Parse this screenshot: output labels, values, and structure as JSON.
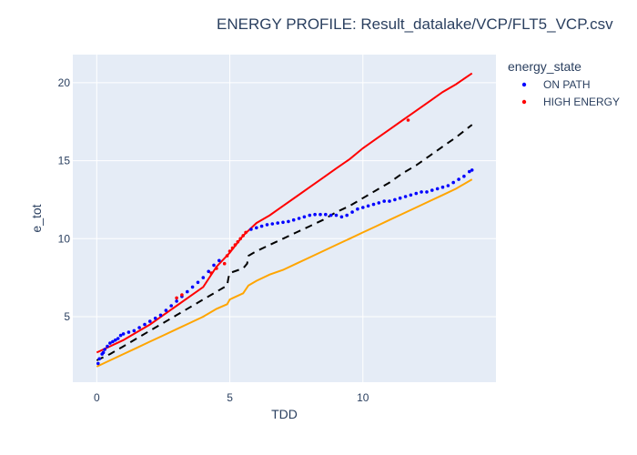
{
  "chart_data": {
    "type": "line",
    "title": "ENERGY PROFILE: Result_datalake/VCP/FLT5_VCP.csv",
    "xlabel": "TDD",
    "ylabel": "e_tot",
    "xlim": [
      -0.9,
      15.0
    ],
    "ylim": [
      0.8,
      21.8
    ],
    "xticks": [
      0,
      5,
      10
    ],
    "yticks": [
      5,
      10,
      15,
      20
    ],
    "grid": true,
    "legend": {
      "title": "energy_state",
      "placement": "top-right-outside",
      "entries": [
        {
          "label": "ON PATH",
          "color": "#0000ff"
        },
        {
          "label": "HIGH ENERGY",
          "color": "#ff0000"
        }
      ]
    },
    "plot_background": "#e5ecf6",
    "series": [
      {
        "kind": "line",
        "color": "#ff0000",
        "dash": "solid",
        "x": [
          0,
          0.5,
          1,
          1.5,
          2,
          2.5,
          3,
          3.5,
          4,
          4.5,
          5,
          5.5,
          6,
          6.5,
          7,
          7.5,
          8,
          8.5,
          9,
          9.5,
          10,
          10.5,
          11,
          11.5,
          12,
          12.5,
          13,
          13.5,
          14.1
        ],
        "y": [
          2.7,
          3.1,
          3.5,
          4.0,
          4.5,
          5.1,
          5.7,
          6.3,
          6.9,
          8.2,
          9.1,
          10.2,
          11.0,
          11.5,
          12.1,
          12.7,
          13.3,
          13.9,
          14.5,
          15.1,
          15.8,
          16.4,
          17.0,
          17.6,
          18.2,
          18.8,
          19.4,
          19.9,
          20.6
        ]
      },
      {
        "kind": "line",
        "color": "#ffa500",
        "dash": "solid",
        "x": [
          0,
          0.5,
          1,
          1.5,
          2,
          2.5,
          3,
          3.5,
          4,
          4.5,
          4.9,
          5.0,
          5.5,
          5.7,
          6.0,
          6.5,
          7,
          7.5,
          8,
          8.5,
          9,
          9.5,
          10,
          10.5,
          11,
          11.5,
          12,
          12.5,
          13,
          13.5,
          14.1
        ],
        "y": [
          1.8,
          2.2,
          2.6,
          3.0,
          3.4,
          3.8,
          4.2,
          4.6,
          5.0,
          5.5,
          5.8,
          6.1,
          6.5,
          7.0,
          7.3,
          7.7,
          8.0,
          8.4,
          8.8,
          9.2,
          9.6,
          10.0,
          10.4,
          10.8,
          11.2,
          11.6,
          12.0,
          12.4,
          12.8,
          13.2,
          13.8
        ]
      },
      {
        "kind": "line",
        "color": "#000000",
        "dash": "dashed",
        "x": [
          0,
          0.5,
          1,
          1.5,
          2,
          2.5,
          3,
          3.5,
          4,
          4.5,
          4.9,
          4.95,
          5.0,
          5.5,
          5.65,
          5.7,
          6.0,
          6.5,
          7,
          7.5,
          8,
          8.5,
          9,
          9.5,
          10,
          10.5,
          11,
          11.5,
          12,
          12.5,
          13,
          13.5,
          14.1
        ],
        "y": [
          2.2,
          2.6,
          3.1,
          3.6,
          4.1,
          4.6,
          5.1,
          5.6,
          6.1,
          6.6,
          7.0,
          7.5,
          7.8,
          8.1,
          8.4,
          8.9,
          9.2,
          9.6,
          10.0,
          10.4,
          10.8,
          11.2,
          11.7,
          12.1,
          12.6,
          13.1,
          13.6,
          14.2,
          14.7,
          15.3,
          15.9,
          16.5,
          17.3
        ]
      },
      {
        "kind": "markers",
        "name": "ON PATH",
        "color": "#0000ff",
        "x": [
          0.05,
          0.1,
          0.2,
          0.25,
          0.3,
          0.4,
          0.5,
          0.6,
          0.7,
          0.8,
          0.9,
          1.0,
          1.2,
          1.4,
          1.6,
          1.8,
          2.0,
          2.2,
          2.4,
          2.6,
          2.8,
          3.0,
          3.2,
          3.4,
          3.6,
          3.8,
          4.0,
          4.2,
          4.4,
          4.6,
          5.8,
          6.0,
          6.2,
          6.4,
          6.6,
          6.8,
          7.0,
          7.2,
          7.4,
          7.6,
          7.8,
          8.0,
          8.2,
          8.4,
          8.6,
          8.8,
          9.0,
          9.2,
          9.4,
          9.6,
          9.8,
          10.0,
          10.2,
          10.4,
          10.6,
          10.8,
          11.0,
          11.2,
          11.4,
          11.6,
          11.8,
          12.0,
          12.2,
          12.4,
          12.6,
          12.8,
          13.0,
          13.2,
          13.4,
          13.6,
          13.8,
          14.0,
          14.1
        ],
        "y": [
          2.0,
          2.3,
          2.6,
          2.7,
          2.9,
          3.1,
          3.3,
          3.4,
          3.5,
          3.6,
          3.8,
          3.9,
          4.0,
          4.1,
          4.3,
          4.5,
          4.7,
          4.9,
          5.1,
          5.4,
          5.7,
          6.0,
          6.3,
          6.6,
          6.9,
          7.2,
          7.5,
          7.9,
          8.3,
          8.6,
          10.6,
          10.7,
          10.8,
          10.9,
          10.95,
          11.0,
          11.05,
          11.1,
          11.2,
          11.3,
          11.4,
          11.5,
          11.55,
          11.55,
          11.55,
          11.5,
          11.5,
          11.4,
          11.5,
          11.7,
          11.9,
          12.0,
          12.1,
          12.2,
          12.3,
          12.4,
          12.4,
          12.5,
          12.6,
          12.7,
          12.8,
          12.9,
          13.0,
          13.0,
          13.1,
          13.2,
          13.3,
          13.4,
          13.6,
          13.8,
          14.0,
          14.3,
          14.4
        ]
      },
      {
        "kind": "markers",
        "name": "HIGH ENERGY",
        "color": "#ff0000",
        "x": [
          3.0,
          3.2,
          4.3,
          4.5,
          4.8,
          4.9,
          5.0,
          5.1,
          5.2,
          5.3,
          5.4,
          5.5,
          5.6,
          11.7
        ],
        "y": [
          6.2,
          6.4,
          7.8,
          8.1,
          8.4,
          8.9,
          9.2,
          9.4,
          9.6,
          9.8,
          10.0,
          10.2,
          10.4,
          17.6
        ]
      }
    ]
  }
}
